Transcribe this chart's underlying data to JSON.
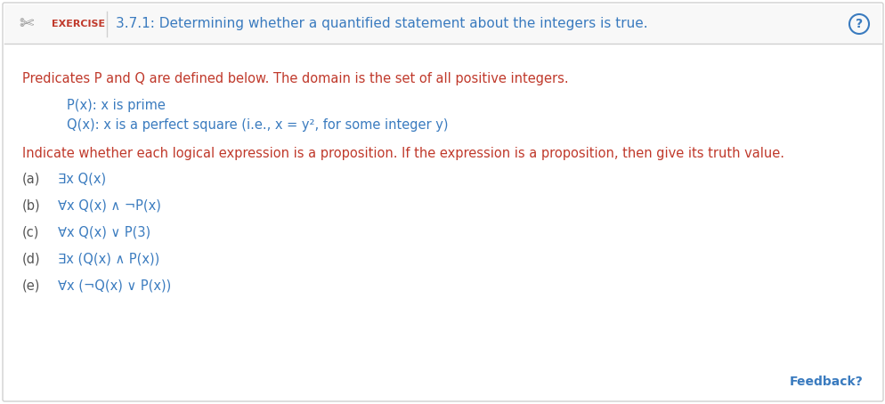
{
  "bg_color": "#ffffff",
  "border_color": "#d0d0d0",
  "header_bg": "#f8f8f8",
  "header_border_bottom": "#d0d0d0",
  "exercise_label": "EXERCISE",
  "exercise_label_color": "#c0392b",
  "header_title": "3.7.1: Determining whether a quantified statement about the integers is true.",
  "header_title_color": "#3a7bbf",
  "question_icon_color": "#3a7bbf",
  "intro_text": "Predicates P and Q are defined below. The domain is the set of all positive integers.",
  "intro_color": "#c0392b",
  "px_text": "P(x): x is prime",
  "qx_text": "Q(x): x is a perfect square (i.e., x = y², for some integer y)",
  "definition_color": "#3a7bbf",
  "indicate_text": "Indicate whether each logical expression is a proposition. If the expression is a proposition, then give its truth value.",
  "indicate_color": "#c0392b",
  "items": [
    {
      "label": "(a)",
      "expr": "∃x Q(x)"
    },
    {
      "label": "(b)",
      "expr": "∀x Q(x) ∧ ¬P(x)"
    },
    {
      "label": "(c)",
      "expr": "∀x Q(x) ∨ P(3)"
    },
    {
      "label": "(d)",
      "expr": "∃x (Q(x) ∧ P(x))"
    },
    {
      "label": "(e)",
      "expr": "∀x (¬Q(x) ∨ P(x))"
    }
  ],
  "item_label_color": "#555555",
  "item_expr_color": "#3a7bbf",
  "feedback_text": "Feedback?",
  "feedback_color": "#3a7bbf",
  "figwidth": 9.95,
  "figheight": 4.54,
  "dpi": 100
}
